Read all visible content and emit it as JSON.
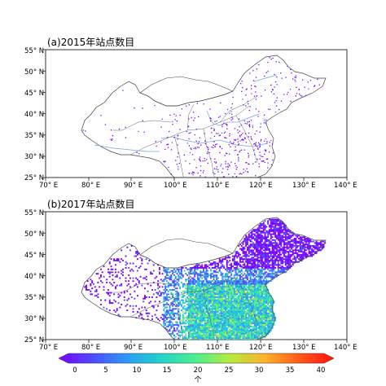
{
  "panels": [
    {
      "title": "(a)2015年站点数目",
      "x_ticks": [
        "70° E",
        "80° E",
        "90° E",
        "100° E",
        "110° E",
        "120° E",
        "130° E",
        "140° E"
      ],
      "y_ticks": [
        "55° N",
        "50° N",
        "45° N",
        "40° N",
        "35° N",
        "30° N",
        "25° N"
      ],
      "density": "sparse"
    },
    {
      "title": "(b)2017年站点数目",
      "x_ticks": [
        "70° E",
        "80° E",
        "90° E",
        "100° E",
        "110° E",
        "120° E",
        "130° E",
        "140° E"
      ],
      "y_ticks": [
        "55° N",
        "50° N",
        "45° N",
        "40° N",
        "35° N",
        "30° N",
        "25° N"
      ],
      "density": "dense"
    }
  ],
  "colorbar": {
    "ticks": [
      "0",
      "5",
      "10",
      "15",
      "20",
      "25",
      "30",
      "35",
      "40"
    ],
    "unit_label": "个",
    "colors": [
      "#7a00ff",
      "#4f4cff",
      "#2c9cf5",
      "#22d4c8",
      "#4df08c",
      "#b6ea3e",
      "#ffb12a",
      "#ff5a18",
      "#ff1010"
    ]
  },
  "map_extent": {
    "lon": [
      70,
      140
    ],
    "lat": [
      25,
      55
    ]
  }
}
